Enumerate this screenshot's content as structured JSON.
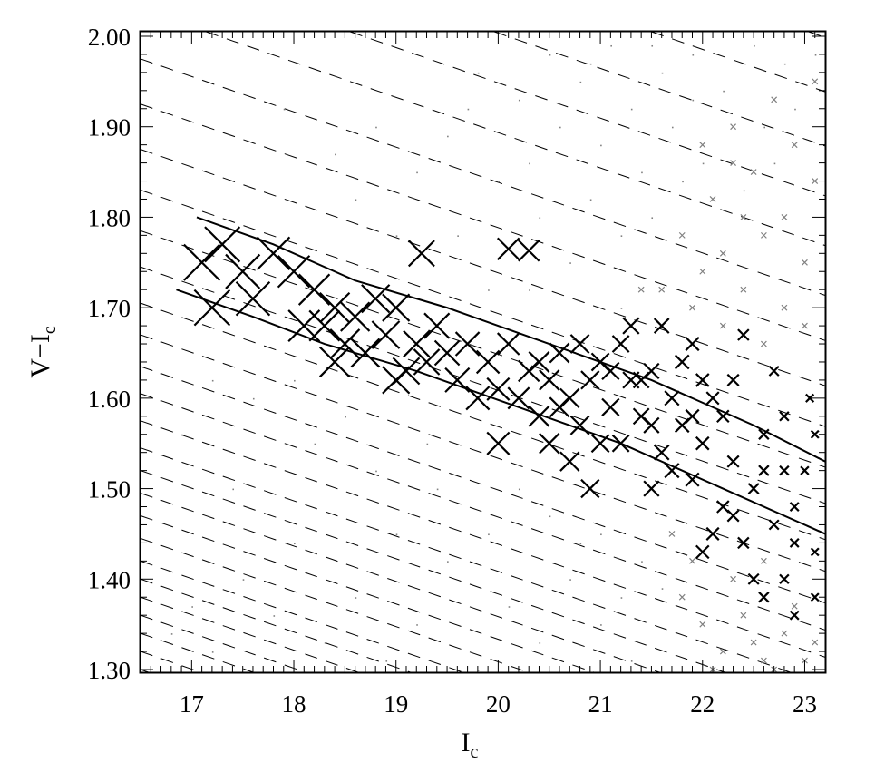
{
  "chart_data": {
    "type": "scatter",
    "xlabel_main": "I",
    "xlabel_sub": "c",
    "ylabel_main": "V−I",
    "ylabel_sub": "c",
    "xlim": [
      16.5,
      23.2
    ],
    "ylim": [
      1.297,
      2.005
    ],
    "xticks": [
      17,
      18,
      19,
      20,
      21,
      22,
      23
    ],
    "xtick_labels": [
      "17",
      "18",
      "19",
      "20",
      "21",
      "22",
      "23"
    ],
    "yticks": [
      1.3,
      1.4,
      1.5,
      1.6,
      1.7,
      1.8,
      1.9,
      2.0
    ],
    "ytick_labels": [
      "1.30",
      "1.40",
      "1.50",
      "1.60",
      "1.70",
      "1.80",
      "1.90",
      "2.00"
    ],
    "grid": false,
    "colors": {
      "primary": "#000000",
      "secondary": "#808080",
      "dashed": "#000000"
    },
    "dashed_lines": {
      "slope": -0.039,
      "intercepts_at_x_16_5": [
        1.3,
        1.32,
        1.34,
        1.36,
        1.38,
        1.4,
        1.42,
        1.445,
        1.47,
        1.495,
        1.52,
        1.545,
        1.575,
        1.605,
        1.635,
        1.67,
        1.705,
        1.745,
        1.785,
        1.83,
        1.875,
        1.925,
        1.975,
        2.03,
        2.085,
        2.14,
        2.2,
        2.26,
        2.32,
        2.39,
        2.46
      ]
    },
    "solid_lines": [
      [
        [
          17.05,
          1.8
        ],
        [
          17.8,
          1.77
        ],
        [
          18.6,
          1.73
        ],
        [
          19.5,
          1.7
        ],
        [
          20.5,
          1.66
        ],
        [
          21.5,
          1.62
        ],
        [
          22.5,
          1.57
        ],
        [
          23.2,
          1.53
        ]
      ],
      [
        [
          16.85,
          1.72
        ],
        [
          17.6,
          1.69
        ],
        [
          18.3,
          1.66
        ],
        [
          19.2,
          1.63
        ],
        [
          20.2,
          1.59
        ],
        [
          21.2,
          1.55
        ],
        [
          22.2,
          1.5
        ],
        [
          23.2,
          1.45
        ]
      ]
    ],
    "black_crosses": [
      [
        17.1,
        1.75
      ],
      [
        17.3,
        1.77
      ],
      [
        17.5,
        1.74
      ],
      [
        17.2,
        1.7
      ],
      [
        17.8,
        1.76
      ],
      [
        17.6,
        1.71
      ],
      [
        18.0,
        1.74
      ],
      [
        18.2,
        1.72
      ],
      [
        18.4,
        1.7
      ],
      [
        18.1,
        1.68
      ],
      [
        18.6,
        1.69
      ],
      [
        18.8,
        1.71
      ],
      [
        18.5,
        1.66
      ],
      [
        18.9,
        1.67
      ],
      [
        19.0,
        1.7
      ],
      [
        19.2,
        1.66
      ],
      [
        19.4,
        1.68
      ],
      [
        19.1,
        1.63
      ],
      [
        19.5,
        1.65
      ],
      [
        19.7,
        1.66
      ],
      [
        19.6,
        1.62
      ],
      [
        19.9,
        1.64
      ],
      [
        20.0,
        1.61
      ],
      [
        20.1,
        1.66
      ],
      [
        20.3,
        1.63
      ],
      [
        20.2,
        1.6
      ],
      [
        20.4,
        1.58
      ],
      [
        20.5,
        1.62
      ],
      [
        20.6,
        1.65
      ],
      [
        20.7,
        1.6
      ],
      [
        20.8,
        1.57
      ],
      [
        20.9,
        1.62
      ],
      [
        21.0,
        1.64
      ],
      [
        21.1,
        1.59
      ],
      [
        21.2,
        1.66
      ],
      [
        21.3,
        1.62
      ],
      [
        21.2,
        1.55
      ],
      [
        21.4,
        1.58
      ],
      [
        21.5,
        1.63
      ],
      [
        21.6,
        1.54
      ],
      [
        21.7,
        1.6
      ],
      [
        21.8,
        1.57
      ],
      [
        21.9,
        1.51
      ],
      [
        22.0,
        1.55
      ],
      [
        22.1,
        1.6
      ],
      [
        22.2,
        1.48
      ],
      [
        22.3,
        1.53
      ],
      [
        22.4,
        1.44
      ],
      [
        22.5,
        1.5
      ],
      [
        22.6,
        1.56
      ],
      [
        22.7,
        1.46
      ],
      [
        22.8,
        1.4
      ],
      [
        22.9,
        1.48
      ],
      [
        23.0,
        1.52
      ],
      [
        22.6,
        1.38
      ],
      [
        22.8,
        1.58
      ],
      [
        23.1,
        1.43
      ],
      [
        22.3,
        1.62
      ],
      [
        21.9,
        1.66
      ],
      [
        22.1,
        1.45
      ],
      [
        20.0,
        1.55
      ],
      [
        20.9,
        1.5
      ],
      [
        19.25,
        1.76
      ],
      [
        20.1,
        1.765
      ],
      [
        20.3,
        1.763
      ],
      [
        18.4,
        1.64
      ],
      [
        21.5,
        1.5
      ],
      [
        22.4,
        1.67
      ],
      [
        22.9,
        1.36
      ],
      [
        23.1,
        1.38
      ],
      [
        21.0,
        1.55
      ],
      [
        20.5,
        1.55
      ],
      [
        22.0,
        1.43
      ],
      [
        22.7,
        1.63
      ],
      [
        21.6,
        1.68
      ],
      [
        21.3,
        1.68
      ],
      [
        20.8,
        1.66
      ],
      [
        21.7,
        1.52
      ],
      [
        22.5,
        1.4
      ],
      [
        22.2,
        1.58
      ],
      [
        21.4,
        1.62
      ],
      [
        20.6,
        1.59
      ],
      [
        21.1,
        1.63
      ],
      [
        22.0,
        1.62
      ],
      [
        22.6,
        1.52
      ],
      [
        22.9,
        1.44
      ],
      [
        23.05,
        1.6
      ],
      [
        23.1,
        1.56
      ],
      [
        21.8,
        1.64
      ],
      [
        20.4,
        1.64
      ],
      [
        19.8,
        1.6
      ],
      [
        19.3,
        1.64
      ],
      [
        18.7,
        1.65
      ],
      [
        19.0,
        1.62
      ],
      [
        18.3,
        1.68
      ],
      [
        20.7,
        1.53
      ],
      [
        22.3,
        1.47
      ],
      [
        22.8,
        1.52
      ],
      [
        21.5,
        1.57
      ],
      [
        21.9,
        1.58
      ]
    ],
    "gray_crosses": [
      [
        22.0,
        1.74
      ],
      [
        22.2,
        1.76
      ],
      [
        22.4,
        1.72
      ],
      [
        22.6,
        1.78
      ],
      [
        22.8,
        1.7
      ],
      [
        23.0,
        1.75
      ],
      [
        22.1,
        1.82
      ],
      [
        22.5,
        1.85
      ],
      [
        22.9,
        1.88
      ],
      [
        22.3,
        1.9
      ],
      [
        22.7,
        1.93
      ],
      [
        23.1,
        1.84
      ],
      [
        21.6,
        1.72
      ],
      [
        21.8,
        1.78
      ],
      [
        22.2,
        1.68
      ],
      [
        22.6,
        1.66
      ],
      [
        23.0,
        1.68
      ],
      [
        22.4,
        1.8
      ],
      [
        22.8,
        1.8
      ],
      [
        23.1,
        1.95
      ],
      [
        21.8,
        1.38
      ],
      [
        22.0,
        1.35
      ],
      [
        22.2,
        1.32
      ],
      [
        22.4,
        1.36
      ],
      [
        22.6,
        1.31
      ],
      [
        22.8,
        1.34
      ],
      [
        23.0,
        1.31
      ],
      [
        22.3,
        1.4
      ],
      [
        22.5,
        1.33
      ],
      [
        22.7,
        1.3
      ],
      [
        22.9,
        1.37
      ],
      [
        21.9,
        1.42
      ],
      [
        22.1,
        1.3
      ],
      [
        23.1,
        1.33
      ],
      [
        21.7,
        1.45
      ],
      [
        22.6,
        1.42
      ],
      [
        21.4,
        1.72
      ],
      [
        21.9,
        1.7
      ],
      [
        22.3,
        1.86
      ],
      [
        22.0,
        1.88
      ]
    ],
    "gray_dots": [
      [
        20.5,
        1.98
      ],
      [
        20.8,
        1.95
      ],
      [
        21.1,
        1.99
      ],
      [
        21.3,
        1.92
      ],
      [
        21.6,
        1.96
      ],
      [
        21.9,
        1.98
      ],
      [
        22.2,
        1.94
      ],
      [
        22.5,
        1.99
      ],
      [
        22.8,
        1.97
      ],
      [
        21.0,
        1.88
      ],
      [
        21.4,
        1.85
      ],
      [
        21.7,
        1.9
      ],
      [
        22.0,
        1.86
      ],
      [
        20.6,
        1.9
      ],
      [
        20.2,
        1.93
      ],
      [
        19.8,
        1.96
      ],
      [
        19.5,
        1.89
      ],
      [
        20.0,
        1.84
      ],
      [
        20.4,
        1.8
      ],
      [
        20.9,
        1.82
      ],
      [
        21.2,
        1.78
      ],
      [
        21.5,
        1.8
      ],
      [
        19.2,
        1.85
      ],
      [
        18.8,
        1.9
      ],
      [
        19.6,
        1.78
      ],
      [
        20.7,
        1.75
      ],
      [
        18.6,
        1.82
      ],
      [
        19.9,
        1.72
      ],
      [
        21.8,
        1.84
      ],
      [
        22.6,
        1.9
      ],
      [
        17.5,
        1.4
      ],
      [
        17.8,
        1.36
      ],
      [
        18.0,
        1.44
      ],
      [
        18.3,
        1.33
      ],
      [
        18.6,
        1.38
      ],
      [
        18.9,
        1.31
      ],
      [
        19.2,
        1.35
      ],
      [
        19.5,
        1.42
      ],
      [
        19.8,
        1.3
      ],
      [
        20.1,
        1.37
      ],
      [
        20.4,
        1.33
      ],
      [
        20.7,
        1.4
      ],
      [
        21.0,
        1.35
      ],
      [
        21.3,
        1.31
      ],
      [
        21.6,
        1.39
      ],
      [
        21.0,
        1.45
      ],
      [
        20.5,
        1.47
      ],
      [
        19.9,
        1.45
      ],
      [
        19.4,
        1.5
      ],
      [
        18.8,
        1.52
      ],
      [
        18.2,
        1.55
      ],
      [
        17.4,
        1.5
      ],
      [
        17.0,
        1.37
      ],
      [
        16.8,
        1.34
      ],
      [
        17.2,
        1.32
      ],
      [
        19.0,
        1.45
      ],
      [
        20.2,
        1.5
      ],
      [
        20.8,
        1.44
      ],
      [
        21.4,
        1.42
      ],
      [
        21.2,
        1.38
      ],
      [
        16.9,
        1.56
      ],
      [
        17.6,
        1.6
      ],
      [
        18.5,
        1.58
      ],
      [
        19.3,
        1.55
      ],
      [
        18.0,
        1.62
      ],
      [
        17.2,
        1.62
      ],
      [
        20.3,
        1.72
      ],
      [
        19.0,
        1.78
      ],
      [
        18.4,
        1.87
      ],
      [
        17.9,
        1.92
      ],
      [
        22.9,
        1.92
      ],
      [
        23.1,
        1.98
      ],
      [
        21.5,
        1.99
      ],
      [
        20.3,
        1.86
      ],
      [
        21.9,
        1.93
      ],
      [
        22.4,
        1.83
      ],
      [
        21.2,
        1.7
      ],
      [
        19.7,
        1.92
      ],
      [
        20.9,
        1.97
      ],
      [
        22.7,
        1.86
      ]
    ]
  }
}
